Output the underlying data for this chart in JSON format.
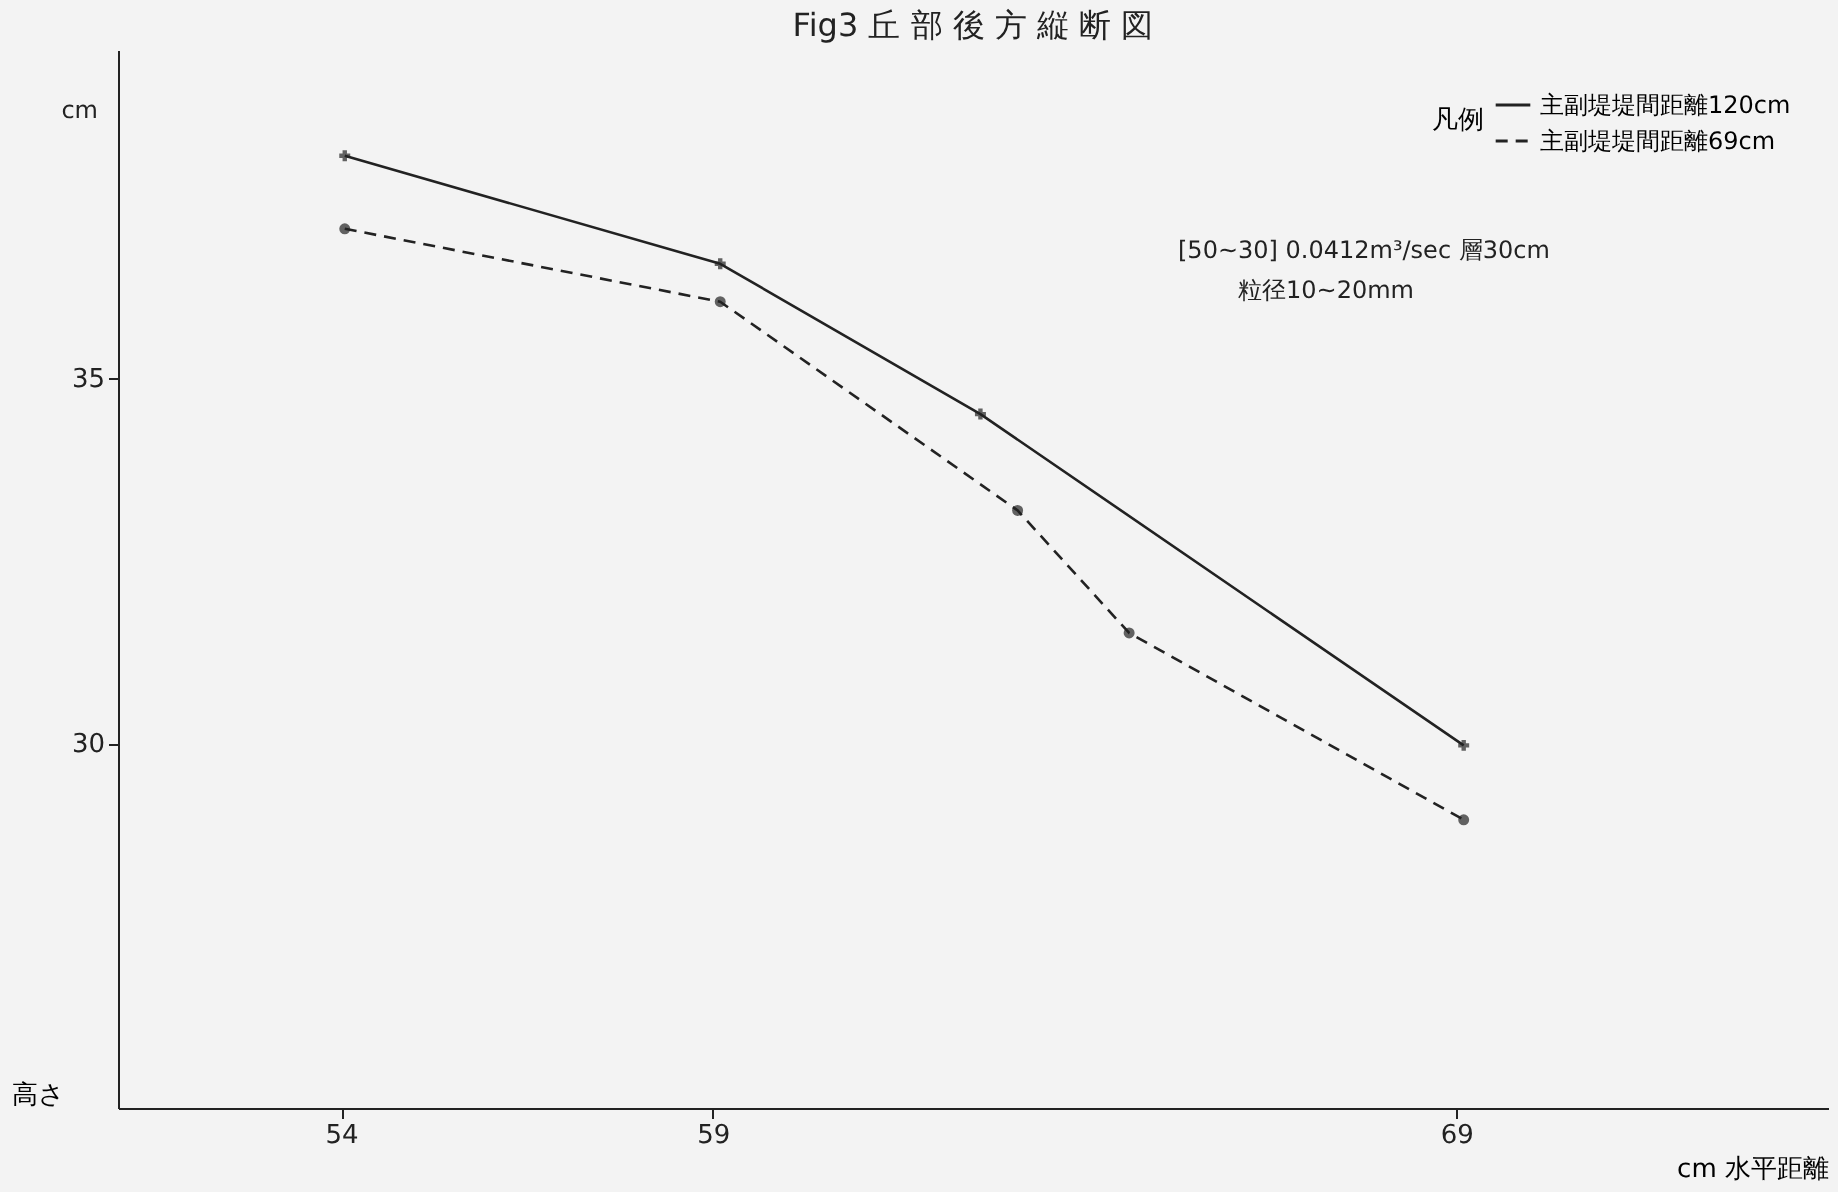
{
  "chart_data": {
    "type": "line",
    "title": "Fig3 丘 部 後 方 縦 断 図",
    "xlabel": "cm 水平距離",
    "ylabel": "高さ",
    "annotations": [
      "cm",
      "[50~30] 0.0412m³/sec 層30cm",
      "粒径10~20mm"
    ],
    "legend_title": "凡例",
    "legend": "top right",
    "grid": false,
    "xlim": [
      51,
      74
    ],
    "xticks": [
      54,
      59,
      69
    ],
    "ylim": [
      25,
      39.5
    ],
    "yticks": [
      30,
      35
    ],
    "series": [
      {
        "name": "主副堤堤間距離120cm",
        "color": "#222222",
        "line_style": "solid",
        "marker": "cross",
        "x": [
          54.05,
          59.1,
          62.6,
          69.1
        ],
        "values": [
          38.05,
          36.57,
          34.51,
          29.97
        ]
      },
      {
        "name": "主副堤堤間距離69cm",
        "color": "#222222",
        "line_style": "dashed",
        "marker": "circle",
        "x": [
          54.05,
          59.1,
          63.1,
          64.6,
          69.1
        ],
        "values": [
          37.05,
          36.05,
          33.19,
          31.51,
          28.95
        ]
      }
    ]
  }
}
